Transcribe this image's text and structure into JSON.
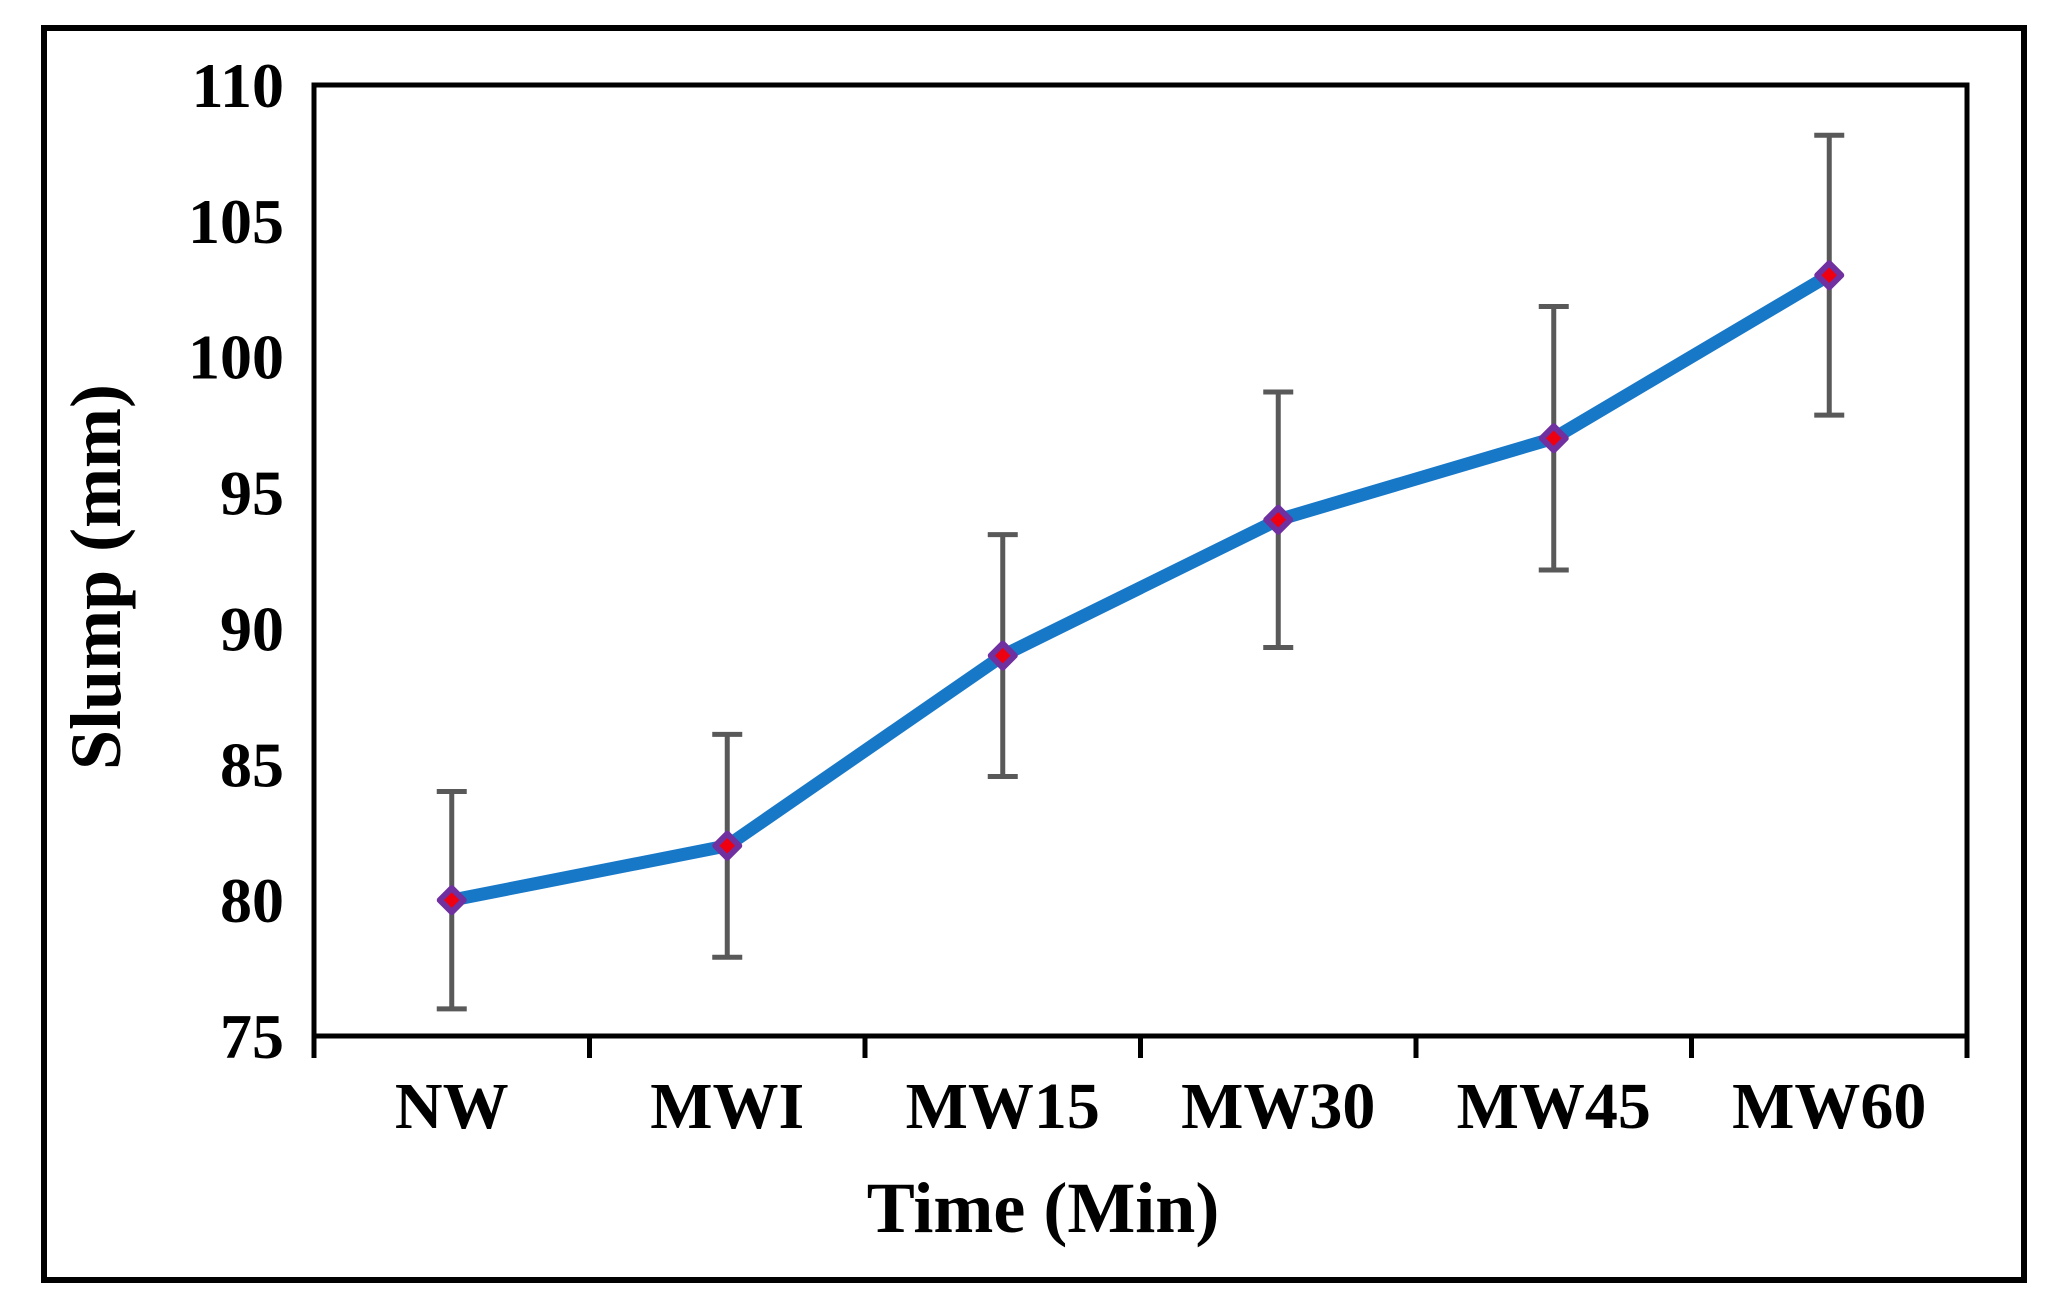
{
  "figure": {
    "background": "#ffffff",
    "outer_border_color": "#000000",
    "plot_border_color": "#000000"
  },
  "chart_data": {
    "type": "line",
    "title": "",
    "xlabel": "Time (Min)",
    "ylabel": "Slump (mm)",
    "categories": [
      "NW",
      "MWI",
      "MW15",
      "MW30",
      "MW45",
      "MW60"
    ],
    "series": [
      {
        "name": "Slump",
        "values": [
          80,
          82,
          89,
          94,
          97,
          103
        ],
        "error_bars": {
          "symmetric": true,
          "percent_of_value": 5,
          "values": [
            4.0,
            4.1,
            4.45,
            4.7,
            4.85,
            5.15
          ]
        }
      }
    ],
    "ylim": [
      75,
      110
    ],
    "yticks": [
      75,
      80,
      85,
      90,
      95,
      100,
      105,
      110
    ],
    "grid": false,
    "legend_position": "none",
    "marker_shape": "diamond",
    "colors": {
      "line": "#1878C8",
      "marker_fill": "#EE0011",
      "marker_border": "#7030A0",
      "error_bar": "#595959",
      "axis": "#000000",
      "text": "#000000"
    }
  }
}
